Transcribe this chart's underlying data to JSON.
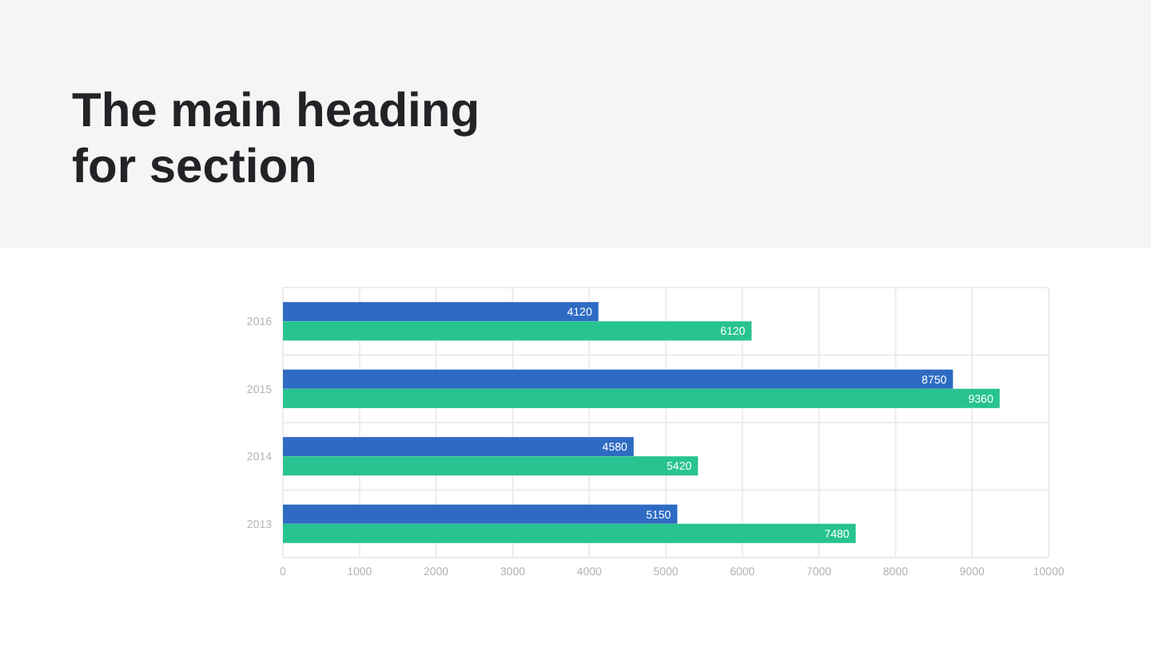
{
  "chart_data": {
    "type": "bar",
    "orientation": "horizontal",
    "title": "The main heading\nfor section",
    "categories": [
      "2016",
      "2015",
      "2014",
      "2013"
    ],
    "series": [
      {
        "color": "#2e6bc2",
        "values": [
          4120,
          8750,
          4580,
          5150
        ]
      },
      {
        "color": "#27c390",
        "values": [
          6120,
          9360,
          5420,
          7480
        ]
      }
    ],
    "xlim": [
      0,
      10000
    ],
    "xticks": [
      0,
      1000,
      2000,
      3000,
      4000,
      5000,
      6000,
      7000,
      8000,
      9000,
      10000
    ],
    "grid": true,
    "data_labels": true
  }
}
